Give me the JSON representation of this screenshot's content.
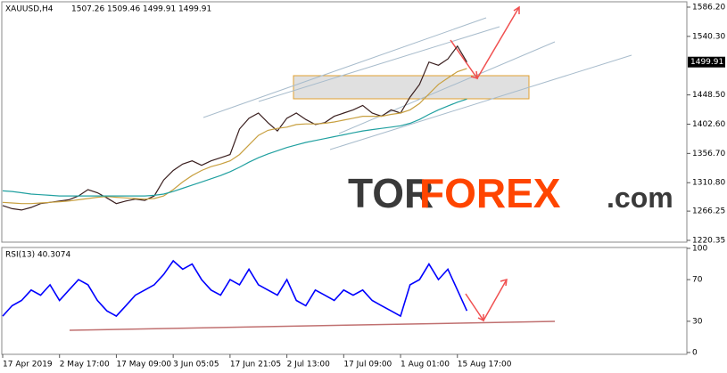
{
  "chart_data": [
    {
      "type": "line",
      "title": "XAUUSD,H4",
      "ohlc_labels": [
        "1507.26",
        "1509.46",
        "1499.91",
        "1499.91"
      ],
      "last_price_label": "1499.91",
      "ylim": [
        1220.35,
        1586.2
      ],
      "yticks": [
        {
          "value": 1586.2,
          "label": "1586.20"
        },
        {
          "value": 1540.3,
          "label": "1540.30"
        },
        {
          "value": 1448.5,
          "label": "1448.50"
        },
        {
          "value": 1402.6,
          "label": "1402.60"
        },
        {
          "value": 1356.7,
          "label": "1356.70"
        },
        {
          "value": 1310.8,
          "label": "1310.80"
        },
        1266.25,
        1220.35
      ],
      "series": [
        {
          "color": "#3a1f1f",
          "values": [
            1275,
            1270,
            1268,
            1272,
            1278,
            1280,
            1282,
            1284,
            1290,
            1300,
            1295,
            1287,
            1278,
            1282,
            1285,
            1283,
            1290,
            1315,
            1330,
            1340,
            1345,
            1338,
            1345,
            1350,
            1355,
            1395,
            1412,
            1420,
            1405,
            1392,
            1412,
            1420,
            1410,
            1402,
            1405,
            1415,
            1420,
            1425,
            1432,
            1420,
            1415,
            1425,
            1420,
            1445,
            1465,
            1500,
            1495,
            1505,
            1525,
            1500
          ]
        },
        {
          "color": "#c8a040",
          "values": [
            1280,
            1279,
            1278,
            1278,
            1279,
            1280,
            1281,
            1282,
            1284,
            1286,
            1288,
            1289,
            1288,
            1287,
            1286,
            1285,
            1286,
            1290,
            1300,
            1312,
            1322,
            1330,
            1336,
            1340,
            1345,
            1355,
            1370,
            1385,
            1393,
            1396,
            1398,
            1402,
            1403,
            1403,
            1404,
            1406,
            1409,
            1412,
            1415,
            1415,
            1415,
            1418,
            1420,
            1425,
            1435,
            1450,
            1465,
            1475,
            1485,
            1490
          ]
        },
        {
          "color": "#20a0a0",
          "values": [
            1298,
            1297,
            1295,
            1293,
            1292,
            1291,
            1290,
            1290,
            1290,
            1290,
            1290,
            1290,
            1290,
            1290,
            1290,
            1290,
            1291,
            1293,
            1297,
            1302,
            1307,
            1312,
            1317,
            1322,
            1328,
            1335,
            1343,
            1350,
            1356,
            1361,
            1366,
            1370,
            1374,
            1377,
            1380,
            1383,
            1386,
            1389,
            1392,
            1394,
            1396,
            1398,
            1400,
            1404,
            1410,
            1418,
            1425,
            1431,
            1437,
            1442
          ]
        }
      ]
    },
    {
      "type": "line",
      "title": "RSI(13) 40.3074",
      "ylim": [
        0,
        100
      ],
      "yticks": [
        100,
        70,
        30,
        0
      ],
      "categories": [
        "17 Apr 2019",
        null,
        null,
        null,
        null,
        null,
        "2 May 17:00",
        null,
        null,
        null,
        null,
        null,
        "17 May 09:00",
        null,
        null,
        null,
        null,
        null,
        "3 Jun 05:05",
        null,
        null,
        null,
        null,
        null,
        "17 Jun 21:05",
        null,
        null,
        null,
        null,
        null,
        "2 Jul 13:00",
        null,
        null,
        null,
        null,
        null,
        "17 Jul 09:00",
        null,
        null,
        null,
        null,
        null,
        "1 Aug 01:00",
        null,
        null,
        null,
        null,
        null,
        "15 Aug 17:00",
        null
      ],
      "series": [
        {
          "color": "#0000ff",
          "values": [
            35,
            45,
            50,
            60,
            55,
            65,
            50,
            60,
            70,
            65,
            50,
            40,
            35,
            45,
            55,
            60,
            65,
            75,
            88,
            80,
            85,
            70,
            60,
            55,
            70,
            65,
            80,
            65,
            60,
            55,
            70,
            50,
            45,
            60,
            55,
            50,
            60,
            55,
            60,
            50,
            45,
            40,
            35,
            65,
            70,
            85,
            70,
            80,
            60,
            40
          ]
        }
      ]
    }
  ],
  "watermark": [
    "TOR",
    "FOREX",
    ".com"
  ]
}
